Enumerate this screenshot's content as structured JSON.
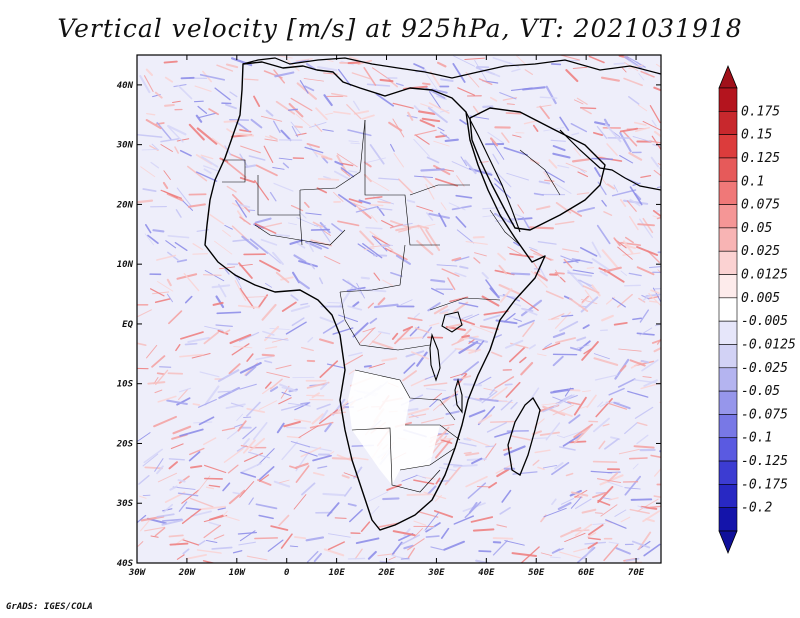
{
  "title": "Vertical velocity [m/s] at 925hPa, VT: 2021031918",
  "footer": "GrADS: IGES/COLA",
  "map": {
    "region": "Africa",
    "lon_range": [
      -30,
      75
    ],
    "lat_range": [
      -40,
      45
    ],
    "lon_ticks": [
      {
        "value": -30,
        "label": "30W"
      },
      {
        "value": -20,
        "label": "20W"
      },
      {
        "value": -10,
        "label": "10W"
      },
      {
        "value": 0,
        "label": "0"
      },
      {
        "value": 10,
        "label": "10E"
      },
      {
        "value": 20,
        "label": "20E"
      },
      {
        "value": 30,
        "label": "30E"
      },
      {
        "value": 40,
        "label": "40E"
      },
      {
        "value": 50,
        "label": "50E"
      },
      {
        "value": 60,
        "label": "60E"
      },
      {
        "value": 70,
        "label": "70E"
      }
    ],
    "lat_ticks": [
      {
        "value": 40,
        "label": "40N"
      },
      {
        "value": 30,
        "label": "30N"
      },
      {
        "value": 20,
        "label": "20N"
      },
      {
        "value": 10,
        "label": "10N"
      },
      {
        "value": 0,
        "label": "EQ"
      },
      {
        "value": -10,
        "label": "10S"
      },
      {
        "value": -20,
        "label": "20S"
      },
      {
        "value": -30,
        "label": "30S"
      },
      {
        "value": -40,
        "label": "40S"
      }
    ]
  },
  "colorbar": {
    "labels": [
      "0.175",
      "0.15",
      "0.125",
      "0.1",
      "0.075",
      "0.05",
      "0.025",
      "0.0125",
      "0.005",
      "-0.005",
      "-0.0125",
      "-0.025",
      "-0.05",
      "-0.075",
      "-0.1",
      "-0.125",
      "-0.175",
      "-0.2"
    ],
    "colors": [
      "#b4141e",
      "#c8282d",
      "#dc3c3c",
      "#e65a5a",
      "#f07878",
      "#f59696",
      "#f8b4b4",
      "#fbd2d2",
      "#fdebeb",
      "#ffffff",
      "#e6e6fa",
      "#d2d2f5",
      "#b4b4f0",
      "#9696eb",
      "#7878e6",
      "#5a5ae1",
      "#3c3cd2",
      "#2828c3",
      "#1414aa"
    ],
    "top_arrow_color": "#a0101a",
    "bottom_arrow_color": "#10109a"
  },
  "colors": {
    "ocean_base": "#eeeefa",
    "land_base": "#ece8f6",
    "coast": "#000000"
  }
}
